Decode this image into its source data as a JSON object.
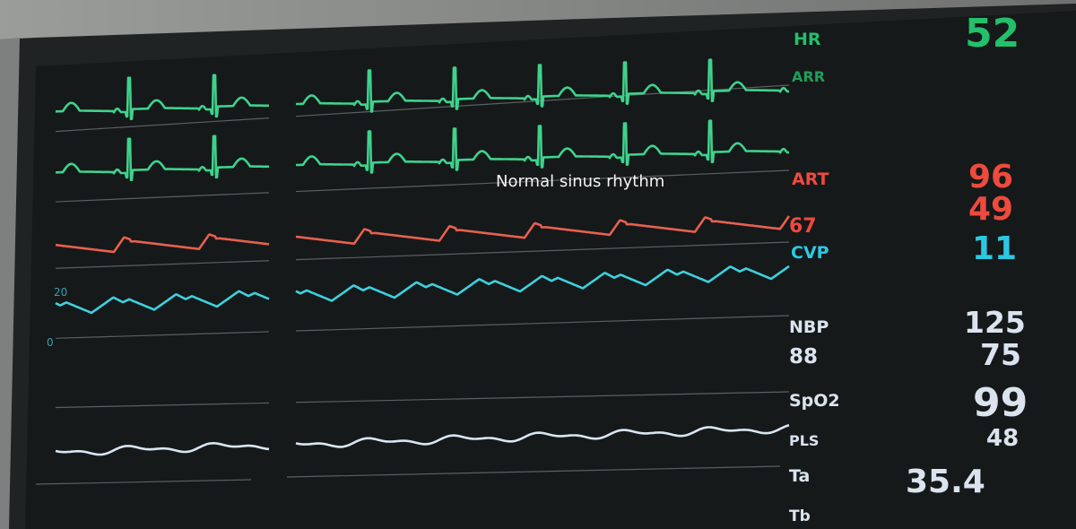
{
  "caption": "Normal sinus rhythm",
  "hr": {
    "label": "HR",
    "value": 52
  },
  "arr": {
    "label": "ARR"
  },
  "art": {
    "label": "ART",
    "systolic": 96,
    "diastolic": 49,
    "mean": 67
  },
  "cvp": {
    "label": "CVP",
    "value": 11,
    "scale_top": 20,
    "scale_bottom": 0
  },
  "nbp": {
    "label": "NBP",
    "systolic": 125,
    "diastolic": 75,
    "mean": 88
  },
  "spo2": {
    "label": "SpO2",
    "value": 99
  },
  "pls": {
    "label": "PLS",
    "value": 48
  },
  "ta": {
    "label": "Ta",
    "value": 35.4
  },
  "tb": {
    "label": "Tb"
  }
}
